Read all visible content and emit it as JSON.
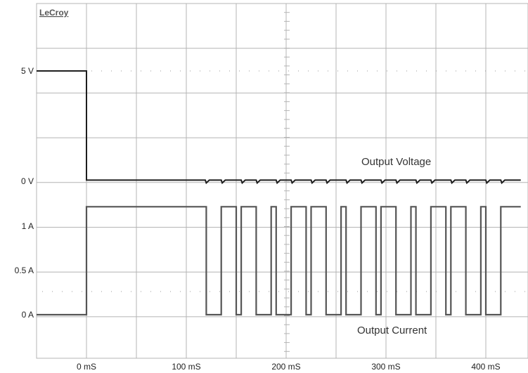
{
  "brand": "LeCroy",
  "colors": {
    "grid": "#b4b4b4",
    "voltage_trace": "#1e1e1e",
    "current_trace": "#555555",
    "background": "#ffffff"
  },
  "chart_data": {
    "type": "line",
    "title": "",
    "xlabel": "",
    "ylabel": "",
    "grid": true,
    "x_unit": "mS",
    "x_ticks": [
      {
        "value": 0,
        "label": "0 mS"
      },
      {
        "value": 100,
        "label": "100 mS"
      },
      {
        "value": 200,
        "label": "200 mS"
      },
      {
        "value": 300,
        "label": "300 mS"
      },
      {
        "value": 400,
        "label": "400 mS"
      }
    ],
    "y_ticks": [
      {
        "label": "5 V",
        "channel": "voltage"
      },
      {
        "label": "0 V",
        "channel": "voltage"
      },
      {
        "label": "1 A",
        "channel": "current"
      },
      {
        "label": "0.5 A",
        "channel": "current"
      },
      {
        "label": "0 A",
        "channel": "current"
      }
    ],
    "annotations": {
      "voltage": "Output Voltage",
      "current": "Output Current"
    },
    "series": [
      {
        "name": "Output Voltage",
        "unit": "V",
        "x": [
          -50,
          0,
          0,
          119,
          120,
          123,
          135,
          136,
          139,
          155,
          156,
          159,
          170,
          171,
          174,
          190,
          191,
          194,
          205,
          206,
          209,
          225,
          226,
          229,
          240,
          241,
          244,
          260,
          261,
          264,
          275,
          276,
          279,
          295,
          296,
          299,
          310,
          311,
          314,
          330,
          331,
          334,
          345,
          346,
          349,
          365,
          366,
          369,
          380,
          381,
          384,
          400,
          401,
          404,
          415,
          416,
          419,
          435
        ],
        "y": [
          5.0,
          5.0,
          0.05,
          0.05,
          -0.08,
          0.05,
          0.05,
          -0.08,
          0.05,
          0.05,
          -0.08,
          0.05,
          0.05,
          -0.08,
          0.05,
          0.05,
          -0.08,
          0.05,
          0.05,
          -0.08,
          0.05,
          0.05,
          -0.08,
          0.05,
          0.05,
          -0.08,
          0.05,
          0.05,
          -0.08,
          0.05,
          0.05,
          -0.08,
          0.05,
          0.05,
          -0.08,
          0.05,
          0.05,
          -0.08,
          0.05,
          0.05,
          -0.08,
          0.05,
          0.05,
          -0.08,
          0.05,
          0.05,
          -0.08,
          0.05,
          0.05,
          -0.08,
          0.05,
          0.05,
          -0.08,
          0.05,
          0.05,
          -0.08,
          0.05,
          0.05
        ]
      },
      {
        "name": "Output Current",
        "unit": "A",
        "x": [
          -50,
          0,
          0,
          120,
          120,
          135,
          135,
          150,
          150,
          155,
          155,
          170,
          170,
          185,
          185,
          190,
          190,
          205,
          205,
          220,
          220,
          225,
          225,
          240,
          240,
          255,
          255,
          260,
          260,
          275,
          275,
          290,
          290,
          295,
          295,
          310,
          310,
          325,
          325,
          330,
          330,
          345,
          345,
          360,
          360,
          365,
          365,
          380,
          380,
          395,
          395,
          400,
          400,
          415,
          415,
          435
        ],
        "y": [
          0,
          0,
          1.22,
          1.22,
          0,
          0,
          1.22,
          1.22,
          0,
          0,
          1.22,
          1.22,
          0,
          0,
          1.22,
          1.22,
          0,
          0,
          1.22,
          1.22,
          0,
          0,
          1.22,
          1.22,
          0,
          0,
          1.22,
          1.22,
          0,
          0,
          1.22,
          1.22,
          0,
          0,
          1.22,
          1.22,
          0,
          0,
          1.22,
          1.22,
          0,
          0,
          1.22,
          1.22,
          0,
          0,
          1.22,
          1.22,
          0,
          0,
          1.22,
          1.22,
          0,
          0,
          1.22,
          1.22
        ]
      }
    ]
  }
}
